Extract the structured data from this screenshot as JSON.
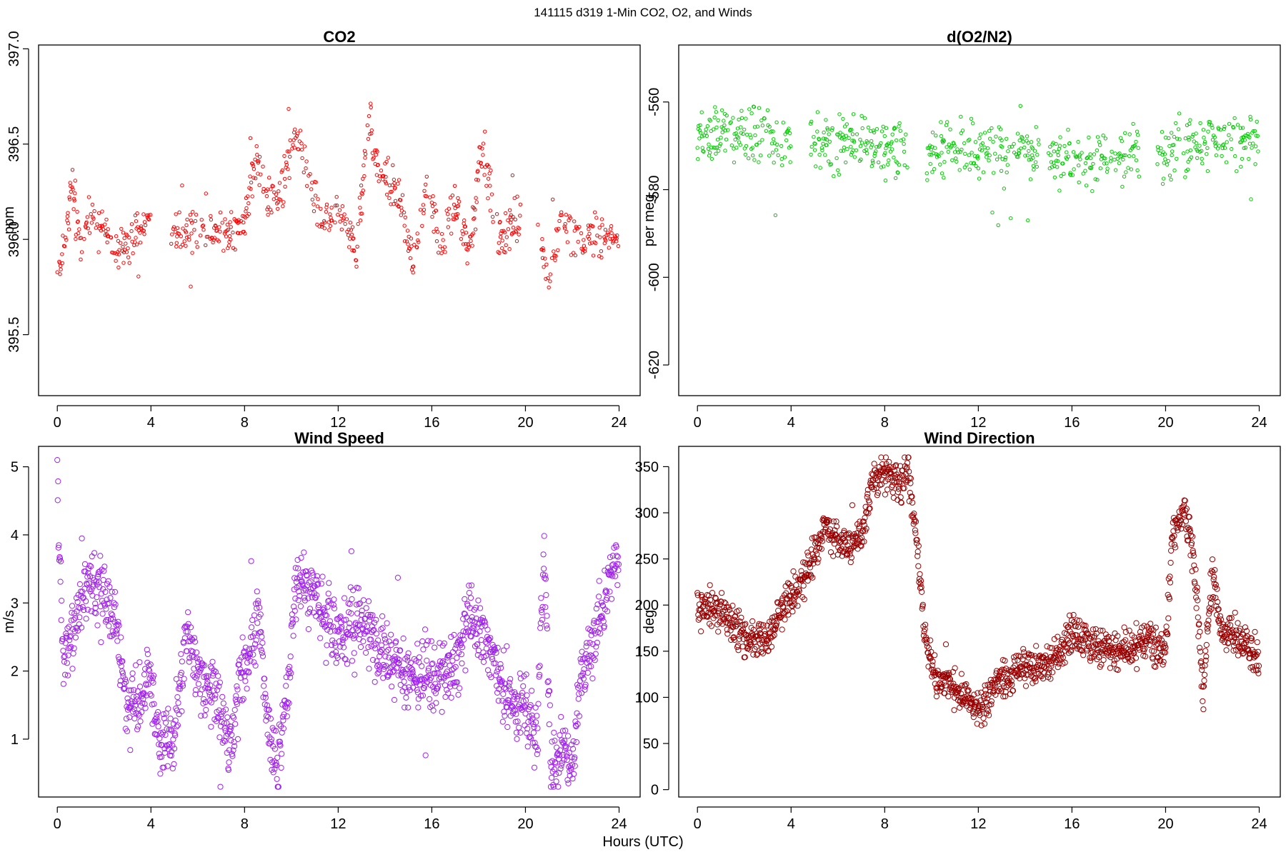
{
  "figure": {
    "title": "141115   d319   1-Min CO2, O2, and Winds",
    "xlabel": "Hours (UTC)"
  },
  "chart_data": [
    {
      "id": "co2",
      "type": "scatter",
      "title": "CO2",
      "xlabel": "",
      "ylabel": "ppm",
      "color": "#ff0000",
      "marker_radius": 2.2,
      "xlim": [
        -0.8,
        24.9
      ],
      "ylim": [
        395.18,
        397.02
      ],
      "xticks": [
        0,
        4,
        8,
        12,
        16,
        20,
        24
      ],
      "yticks": [
        395.5,
        396.0,
        396.5,
        397.0
      ],
      "ytick_labels": [
        "395.5",
        "396.0",
        "396.5",
        "397.0"
      ],
      "ytick_rotation": -90,
      "gaps": [
        [
          4.0,
          4.8
        ],
        [
          19.8,
          20.5
        ]
      ],
      "segments": [
        {
          "x": 0.0,
          "y": 395.85
        },
        {
          "x": 0.3,
          "y": 395.95
        },
        {
          "x": 0.6,
          "y": 396.3
        },
        {
          "x": 1.0,
          "y": 395.95
        },
        {
          "x": 1.4,
          "y": 396.15
        },
        {
          "x": 2.0,
          "y": 396.05
        },
        {
          "x": 2.6,
          "y": 395.95
        },
        {
          "x": 3.2,
          "y": 396.0
        },
        {
          "x": 3.8,
          "y": 396.1
        },
        {
          "x": 4.8,
          "y": 396.05
        },
        {
          "x": 6.0,
          "y": 396.05
        },
        {
          "x": 7.0,
          "y": 396.05
        },
        {
          "x": 8.0,
          "y": 396.1
        },
        {
          "x": 8.5,
          "y": 396.45
        },
        {
          "x": 8.9,
          "y": 396.2
        },
        {
          "x": 9.5,
          "y": 396.25
        },
        {
          "x": 10.2,
          "y": 396.55
        },
        {
          "x": 10.8,
          "y": 396.3
        },
        {
          "x": 11.2,
          "y": 396.1
        },
        {
          "x": 12.0,
          "y": 396.15
        },
        {
          "x": 12.8,
          "y": 395.95
        },
        {
          "x": 13.3,
          "y": 396.65
        },
        {
          "x": 13.8,
          "y": 396.35
        },
        {
          "x": 14.5,
          "y": 396.25
        },
        {
          "x": 15.2,
          "y": 395.9
        },
        {
          "x": 15.8,
          "y": 396.3
        },
        {
          "x": 16.4,
          "y": 395.95
        },
        {
          "x": 17.0,
          "y": 396.2
        },
        {
          "x": 17.6,
          "y": 395.95
        },
        {
          "x": 18.2,
          "y": 396.5
        },
        {
          "x": 18.8,
          "y": 396.0
        },
        {
          "x": 19.6,
          "y": 396.1
        },
        {
          "x": 20.5,
          "y": 396.05
        },
        {
          "x": 21.0,
          "y": 395.8
        },
        {
          "x": 21.5,
          "y": 396.1
        },
        {
          "x": 22.2,
          "y": 396.0
        },
        {
          "x": 23.0,
          "y": 396.05
        },
        {
          "x": 23.8,
          "y": 396.0
        }
      ],
      "noise": 0.08,
      "spike_min": 395.22,
      "spike_max": 396.92
    },
    {
      "id": "o2",
      "type": "scatter",
      "title": "d(O2/N2)",
      "xlabel": "",
      "ylabel": "per meg",
      "color": "#00cc00",
      "marker_radius": 2.2,
      "xlim": [
        -0.8,
        24.9
      ],
      "ylim": [
        -627,
        -547
      ],
      "xticks": [
        0,
        4,
        8,
        12,
        16,
        20,
        24
      ],
      "yticks": [
        -620,
        -600,
        -580,
        -560
      ],
      "ytick_labels": [
        "-620",
        "-600",
        "-580",
        "-560"
      ],
      "ytick_rotation": -90,
      "gaps": [
        [
          4.0,
          4.8
        ],
        [
          9.0,
          9.7
        ],
        [
          14.6,
          14.9
        ],
        [
          18.9,
          19.6
        ]
      ],
      "segments": [
        {
          "x": 0.0,
          "y": -568
        },
        {
          "x": 2.0,
          "y": -567
        },
        {
          "x": 4.0,
          "y": -569
        },
        {
          "x": 6.0,
          "y": -569
        },
        {
          "x": 8.0,
          "y": -570
        },
        {
          "x": 10.0,
          "y": -571
        },
        {
          "x": 12.0,
          "y": -571
        },
        {
          "x": 14.0,
          "y": -571
        },
        {
          "x": 16.0,
          "y": -573
        },
        {
          "x": 18.0,
          "y": -572
        },
        {
          "x": 20.0,
          "y": -571
        },
        {
          "x": 22.0,
          "y": -569
        },
        {
          "x": 24.0,
          "y": -569
        }
      ],
      "noise": 4.5,
      "spike_min": -624,
      "spike_max": -548
    },
    {
      "id": "wind-speed",
      "type": "scatter",
      "title": "Wind Speed",
      "xlabel": "",
      "ylabel": "m/s",
      "color": "#a020f0",
      "marker_radius": 3.6,
      "xlim": [
        -0.8,
        24.9
      ],
      "ylim": [
        0.15,
        5.3
      ],
      "xticks": [
        0,
        4,
        8,
        12,
        16,
        20,
        24
      ],
      "yticks": [
        1,
        2,
        3,
        4,
        5
      ],
      "ytick_labels": [
        "1",
        "2",
        "3",
        "4",
        "5"
      ],
      "ytick_rotation": 0,
      "gaps": [],
      "segments": [
        {
          "x": 0.0,
          "y": 4.8
        },
        {
          "x": 0.2,
          "y": 2.4
        },
        {
          "x": 0.6,
          "y": 2.5
        },
        {
          "x": 1.2,
          "y": 3.3
        },
        {
          "x": 1.8,
          "y": 3.2
        },
        {
          "x": 2.4,
          "y": 2.9
        },
        {
          "x": 3.0,
          "y": 1.4
        },
        {
          "x": 3.6,
          "y": 1.6
        },
        {
          "x": 4.0,
          "y": 1.9
        },
        {
          "x": 4.4,
          "y": 0.9
        },
        {
          "x": 5.0,
          "y": 1.0
        },
        {
          "x": 5.5,
          "y": 2.5
        },
        {
          "x": 6.2,
          "y": 1.9
        },
        {
          "x": 7.0,
          "y": 1.4
        },
        {
          "x": 7.4,
          "y": 0.8
        },
        {
          "x": 7.8,
          "y": 1.9
        },
        {
          "x": 8.6,
          "y": 2.8
        },
        {
          "x": 9.0,
          "y": 1.2
        },
        {
          "x": 9.4,
          "y": 0.5
        },
        {
          "x": 9.8,
          "y": 1.5
        },
        {
          "x": 10.2,
          "y": 3.3
        },
        {
          "x": 10.8,
          "y": 3.2
        },
        {
          "x": 12.0,
          "y": 2.5
        },
        {
          "x": 13.0,
          "y": 2.8
        },
        {
          "x": 14.0,
          "y": 2.2
        },
        {
          "x": 15.0,
          "y": 1.9
        },
        {
          "x": 16.0,
          "y": 1.9
        },
        {
          "x": 17.0,
          "y": 2.0
        },
        {
          "x": 17.6,
          "y": 2.9
        },
        {
          "x": 18.4,
          "y": 2.4
        },
        {
          "x": 19.2,
          "y": 1.5
        },
        {
          "x": 20.0,
          "y": 1.5
        },
        {
          "x": 20.5,
          "y": 0.8
        },
        {
          "x": 20.8,
          "y": 4.0
        },
        {
          "x": 21.1,
          "y": 0.5
        },
        {
          "x": 21.6,
          "y": 1.0
        },
        {
          "x": 22.0,
          "y": 0.6
        },
        {
          "x": 22.4,
          "y": 1.9
        },
        {
          "x": 23.0,
          "y": 2.5
        },
        {
          "x": 23.5,
          "y": 3.2
        },
        {
          "x": 23.9,
          "y": 3.6
        }
      ],
      "noise": 0.35,
      "spike_min": 0.3,
      "spike_max": 5.1
    },
    {
      "id": "wind-direction",
      "type": "scatter",
      "title": "Wind Direction",
      "xlabel": "",
      "ylabel": "deg",
      "color": "#990000",
      "marker_radius": 3.6,
      "xlim": [
        -0.8,
        24.9
      ],
      "ylim": [
        -8,
        372
      ],
      "xticks": [
        0,
        4,
        8,
        12,
        16,
        20,
        24
      ],
      "yticks": [
        0,
        50,
        100,
        150,
        200,
        250,
        300,
        350
      ],
      "ytick_labels": [
        "0",
        "50",
        "100",
        "150",
        "200",
        "250",
        "300",
        "350"
      ],
      "ytick_rotation": 0,
      "gaps": [],
      "segments": [
        {
          "x": 0.0,
          "y": 195
        },
        {
          "x": 1.0,
          "y": 195
        },
        {
          "x": 2.0,
          "y": 165
        },
        {
          "x": 3.0,
          "y": 160
        },
        {
          "x": 3.5,
          "y": 190
        },
        {
          "x": 4.2,
          "y": 215
        },
        {
          "x": 4.8,
          "y": 240
        },
        {
          "x": 5.4,
          "y": 285
        },
        {
          "x": 6.2,
          "y": 265
        },
        {
          "x": 7.0,
          "y": 270
        },
        {
          "x": 7.4,
          "y": 330
        },
        {
          "x": 8.0,
          "y": 345
        },
        {
          "x": 8.6,
          "y": 330
        },
        {
          "x": 9.0,
          "y": 345
        },
        {
          "x": 9.4,
          "y": 260
        },
        {
          "x": 9.7,
          "y": 170
        },
        {
          "x": 10.2,
          "y": 115
        },
        {
          "x": 11.0,
          "y": 110
        },
        {
          "x": 12.0,
          "y": 85
        },
        {
          "x": 13.0,
          "y": 120
        },
        {
          "x": 14.0,
          "y": 130
        },
        {
          "x": 15.0,
          "y": 135
        },
        {
          "x": 16.0,
          "y": 170
        },
        {
          "x": 17.0,
          "y": 155
        },
        {
          "x": 18.0,
          "y": 150
        },
        {
          "x": 19.0,
          "y": 160
        },
        {
          "x": 20.0,
          "y": 150
        },
        {
          "x": 20.3,
          "y": 280
        },
        {
          "x": 20.8,
          "y": 300
        },
        {
          "x": 21.2,
          "y": 250
        },
        {
          "x": 21.6,
          "y": 110
        },
        {
          "x": 22.0,
          "y": 235
        },
        {
          "x": 22.4,
          "y": 170
        },
        {
          "x": 23.2,
          "y": 165
        },
        {
          "x": 23.9,
          "y": 140
        }
      ],
      "noise": 14,
      "spike_min": 0,
      "spike_max": 360
    }
  ]
}
